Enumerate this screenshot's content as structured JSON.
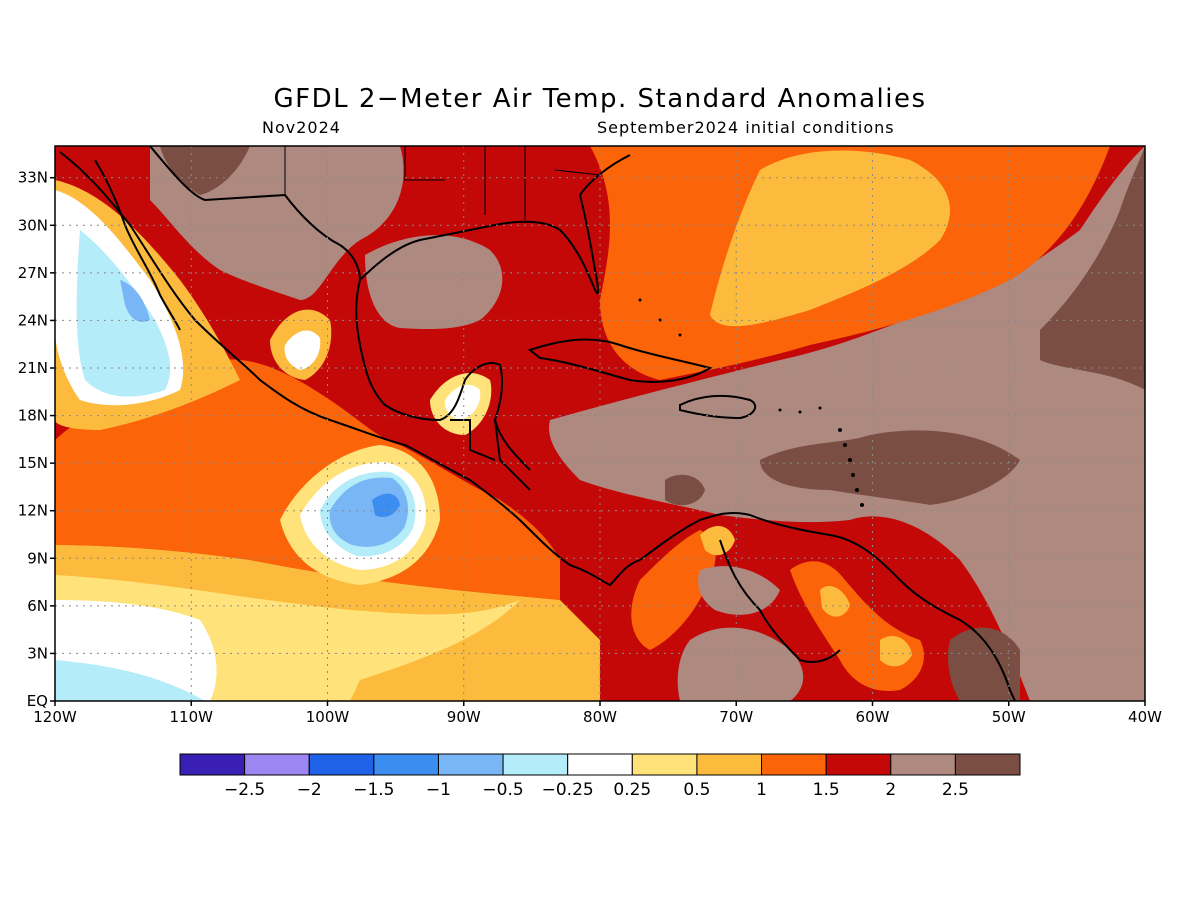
{
  "header": {
    "title": "GFDL 2−Meter Air Temp. Standard Anomalies",
    "subtitle_left": "Nov2024",
    "subtitle_right": "September2024 initial conditions"
  },
  "map": {
    "lon_range": [
      -120,
      -40
    ],
    "lat_range": [
      0,
      35
    ],
    "lon_ticks": [
      {
        "value": -120,
        "label": "120W"
      },
      {
        "value": -110,
        "label": "110W"
      },
      {
        "value": -100,
        "label": "100W"
      },
      {
        "value": -90,
        "label": "90W"
      },
      {
        "value": -80,
        "label": "80W"
      },
      {
        "value": -70,
        "label": "70W"
      },
      {
        "value": -60,
        "label": "60W"
      },
      {
        "value": -50,
        "label": "50W"
      },
      {
        "value": -40,
        "label": "40W"
      }
    ],
    "lat_ticks": [
      {
        "value": 0,
        "label": "EQ"
      },
      {
        "value": 3,
        "label": "3N"
      },
      {
        "value": 6,
        "label": "6N"
      },
      {
        "value": 9,
        "label": "9N"
      },
      {
        "value": 12,
        "label": "12N"
      },
      {
        "value": 15,
        "label": "15N"
      },
      {
        "value": 18,
        "label": "18N"
      },
      {
        "value": 21,
        "label": "21N"
      },
      {
        "value": 24,
        "label": "24N"
      },
      {
        "value": 27,
        "label": "27N"
      },
      {
        "value": 30,
        "label": "30N"
      },
      {
        "value": 33,
        "label": "33N"
      }
    ],
    "gridlines": "dotted"
  },
  "colorbar": {
    "colors": [
      "#3a1fb4",
      "#9b86f2",
      "#1f62e8",
      "#3b8ef0",
      "#79b6f5",
      "#b4ecfa",
      "#ffffff",
      "#ffe37a",
      "#fdbb3e",
      "#fb6409",
      "#c40808",
      "#ae8980",
      "#7b4e43"
    ],
    "labels": [
      "−2.5",
      "−2",
      "−1.5",
      "−1",
      "−0.5",
      "−0.25",
      "0.25",
      "0.5",
      "1",
      "1.5",
      "2",
      "2.5"
    ]
  }
}
